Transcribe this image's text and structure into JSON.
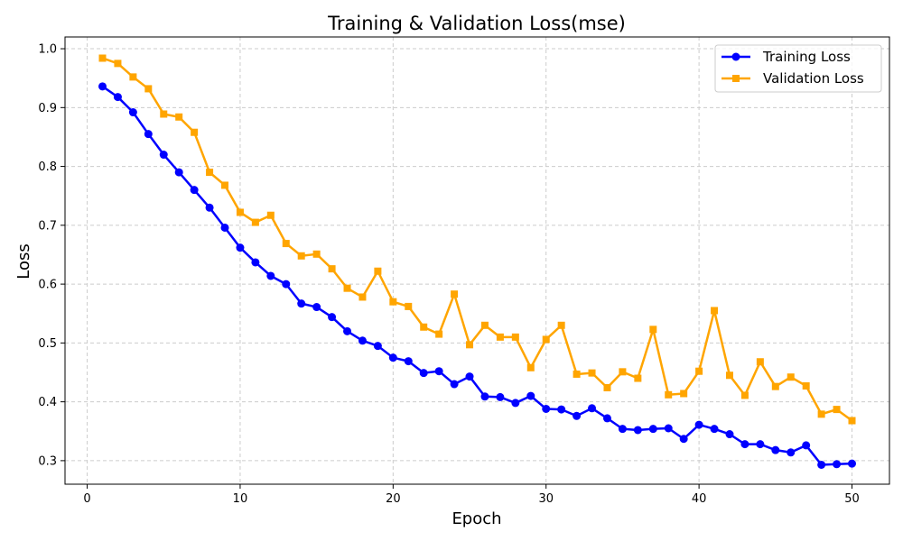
{
  "chart_data": {
    "type": "line",
    "title": "Training & Validation Loss(mse)",
    "xlabel": "Epoch",
    "ylabel": "Loss",
    "xlim": [
      -1.45,
      52.45
    ],
    "ylim": [
      0.26,
      1.02
    ],
    "xticks": [
      0,
      10,
      20,
      30,
      40,
      50
    ],
    "yticks": [
      0.3,
      0.4,
      0.5,
      0.6,
      0.7,
      0.8,
      0.9,
      1.0
    ],
    "grid": true,
    "legend": "top-right",
    "x": [
      1,
      2,
      3,
      4,
      5,
      6,
      7,
      8,
      9,
      10,
      11,
      12,
      13,
      14,
      15,
      16,
      17,
      18,
      19,
      20,
      21,
      22,
      23,
      24,
      25,
      26,
      27,
      28,
      29,
      30,
      31,
      32,
      33,
      34,
      35,
      36,
      37,
      38,
      39,
      40,
      41,
      42,
      43,
      44,
      45,
      46,
      47,
      48,
      49,
      50
    ],
    "series": [
      {
        "name": "Training Loss",
        "color": "#0000ff",
        "marker": "circle",
        "values": [
          0.936,
          0.918,
          0.892,
          0.855,
          0.82,
          0.79,
          0.76,
          0.73,
          0.696,
          0.662,
          0.637,
          0.614,
          0.6,
          0.567,
          0.561,
          0.544,
          0.52,
          0.504,
          0.495,
          0.475,
          0.469,
          0.449,
          0.452,
          0.43,
          0.443,
          0.409,
          0.408,
          0.398,
          0.41,
          0.388,
          0.387,
          0.376,
          0.389,
          0.372,
          0.354,
          0.352,
          0.354,
          0.355,
          0.337,
          0.361,
          0.354,
          0.345,
          0.328,
          0.328,
          0.318,
          0.314,
          0.326,
          0.293,
          0.294,
          0.295
        ]
      },
      {
        "name": "Validation Loss",
        "color": "#ffa500",
        "marker": "square",
        "values": [
          0.984,
          0.975,
          0.952,
          0.932,
          0.889,
          0.884,
          0.858,
          0.79,
          0.768,
          0.722,
          0.705,
          0.717,
          0.669,
          0.648,
          0.651,
          0.626,
          0.593,
          0.578,
          0.622,
          0.57,
          0.562,
          0.527,
          0.515,
          0.583,
          0.497,
          0.53,
          0.51,
          0.51,
          0.458,
          0.506,
          0.53,
          0.447,
          0.449,
          0.424,
          0.451,
          0.44,
          0.523,
          0.412,
          0.414,
          0.452,
          0.555,
          0.445,
          0.411,
          0.468,
          0.426,
          0.442,
          0.427,
          0.379,
          0.387,
          0.368
        ]
      }
    ]
  }
}
